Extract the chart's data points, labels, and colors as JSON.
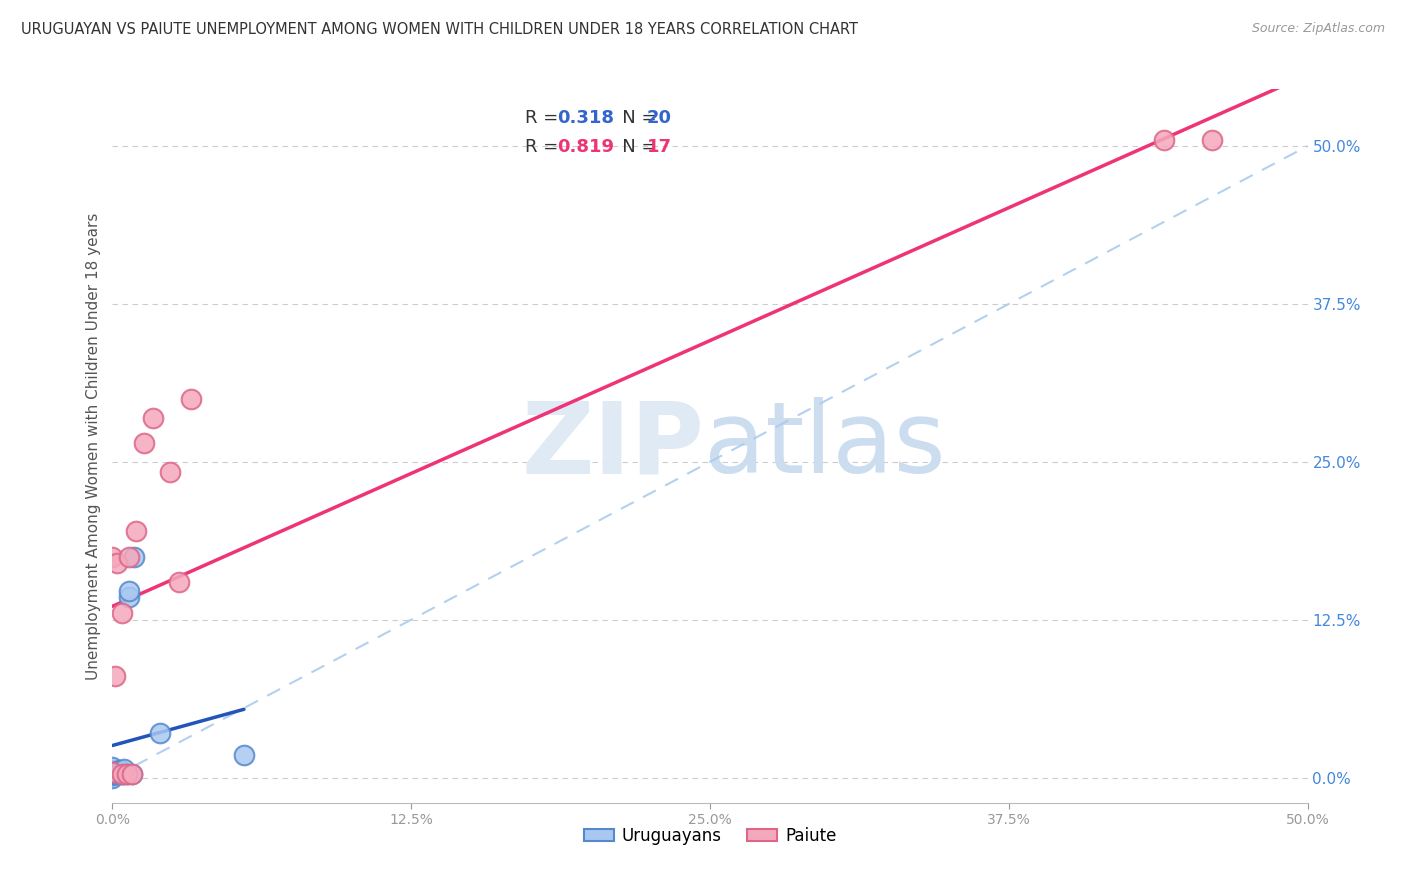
{
  "title": "URUGUAYAN VS PAIUTE UNEMPLOYMENT AMONG WOMEN WITH CHILDREN UNDER 18 YEARS CORRELATION CHART",
  "source": "Source: ZipAtlas.com",
  "ylabel": "Unemployment Among Women with Children Under 18 years",
  "xlim": [
    0,
    0.5
  ],
  "ylim": [
    -0.02,
    0.545
  ],
  "uruguayan_color": "#A8C8F0",
  "uruguayan_edge": "#5588CC",
  "paiute_color": "#F4A8BC",
  "paiute_edge": "#DD6688",
  "regression_blue": "#2255BB",
  "regression_pink": "#EE3377",
  "diagonal_color": "#AACCEE",
  "r1_val": "0.318",
  "n1_val": "20",
  "r2_val": "0.819",
  "n2_val": "17",
  "legend_blue_color": "#3366CC",
  "legend_pink_color": "#EE3377",
  "uruguayan_x": [
    0.0,
    0.0,
    0.0,
    0.0,
    0.0,
    0.001,
    0.002,
    0.002,
    0.003,
    0.003,
    0.004,
    0.005,
    0.005,
    0.006,
    0.007,
    0.007,
    0.008,
    0.009,
    0.02,
    0.055
  ],
  "uruguayan_y": [
    0.0,
    0.002,
    0.004,
    0.006,
    0.008,
    0.003,
    0.003,
    0.005,
    0.004,
    0.006,
    0.003,
    0.003,
    0.007,
    0.003,
    0.143,
    0.148,
    0.003,
    0.175,
    0.035,
    0.018
  ],
  "paiute_x": [
    0.0,
    0.0,
    0.001,
    0.002,
    0.004,
    0.004,
    0.006,
    0.007,
    0.008,
    0.01,
    0.013,
    0.017,
    0.024,
    0.028,
    0.033,
    0.44,
    0.46
  ],
  "paiute_y": [
    0.004,
    0.175,
    0.08,
    0.17,
    0.003,
    0.13,
    0.003,
    0.175,
    0.003,
    0.195,
    0.265,
    0.285,
    0.242,
    0.155,
    0.3,
    0.505,
    0.505
  ],
  "tick_vals": [
    0.0,
    0.125,
    0.25,
    0.375,
    0.5
  ],
  "tick_labels": [
    "0.0%",
    "12.5%",
    "25.0%",
    "37.5%",
    "50.0%"
  ],
  "right_tick_labels": [
    "0.0%",
    "12.5%",
    "25.0%",
    "37.5%",
    "50.0%"
  ]
}
